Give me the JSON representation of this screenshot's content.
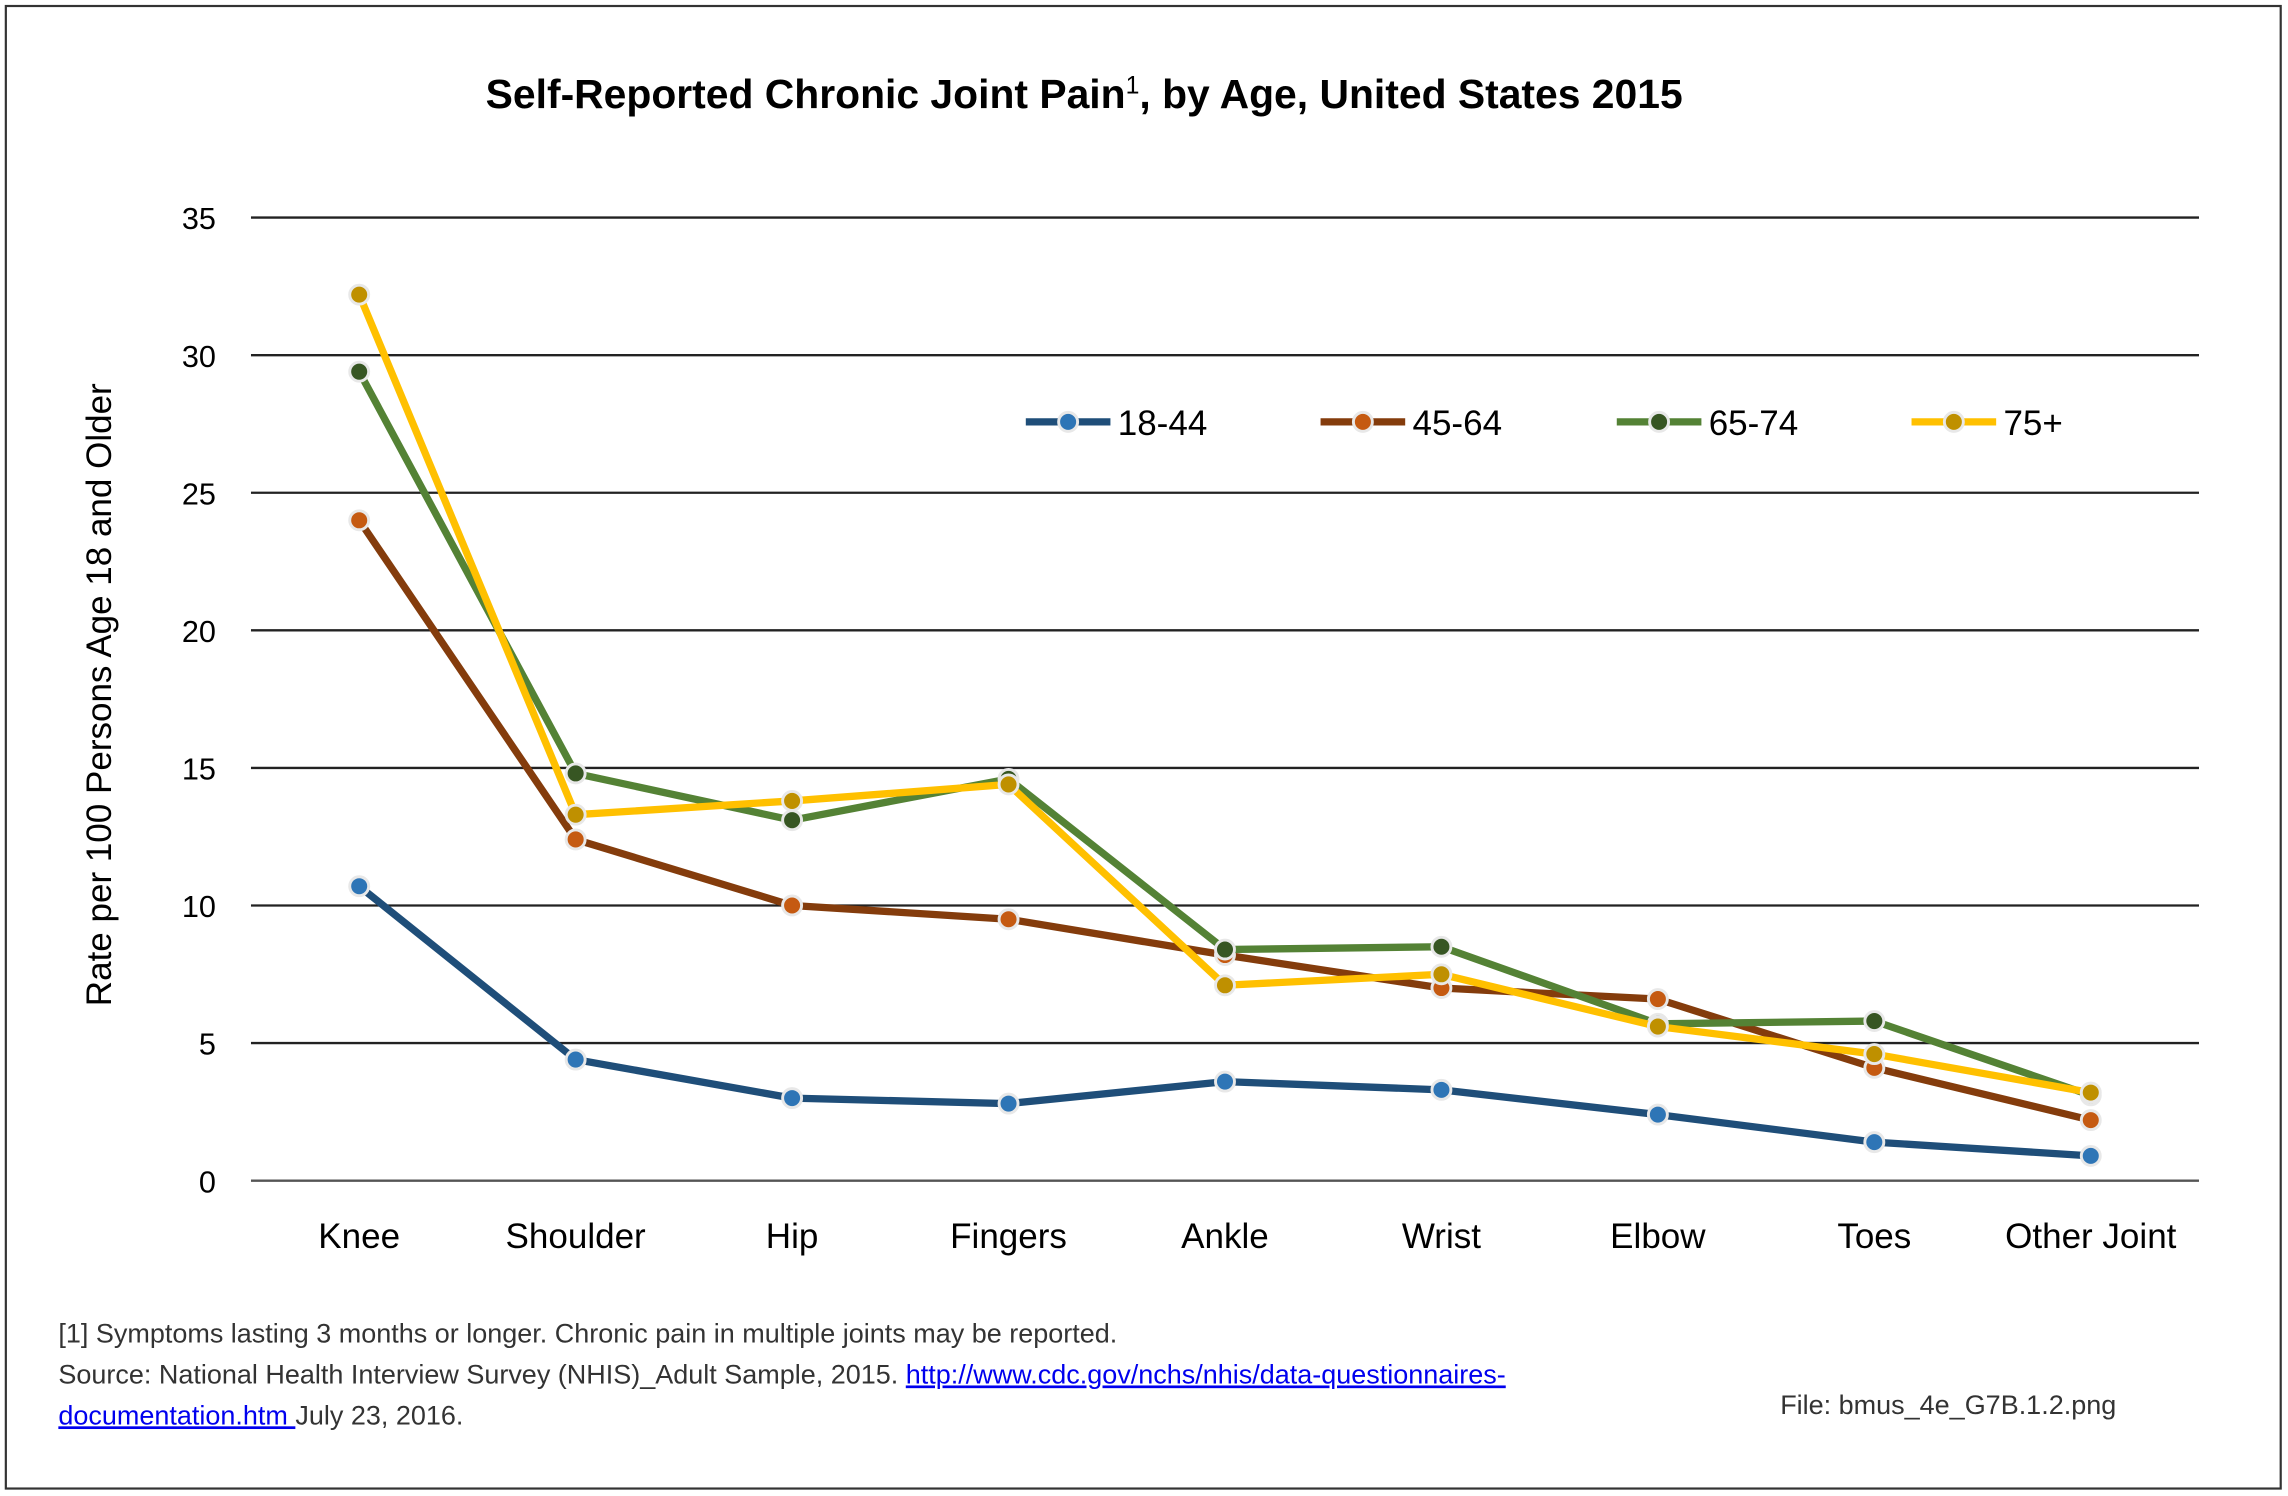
{
  "chart_data": {
    "type": "line",
    "title": "Self-Reported Chronic Joint Pain",
    "title_superscript": "1",
    "title_suffix": ", by Age, United States 2015",
    "xlabel": "",
    "ylabel": "Rate per 100 Persons Age 18 and Older",
    "ylim": [
      0,
      35
    ],
    "yticks": [
      0,
      5,
      10,
      15,
      20,
      25,
      30,
      35
    ],
    "grid": true,
    "legend_position": "top-right",
    "categories": [
      "Knee",
      "Shoulder",
      "Hip",
      "Fingers",
      "Ankle",
      "Wrist",
      "Elbow",
      "Toes",
      "Other Joint"
    ],
    "series": [
      {
        "name": "18-44",
        "line_color": "#1f4e79",
        "marker_color": "#2e75b6",
        "values": [
          10.7,
          4.4,
          3.0,
          2.8,
          3.6,
          3.3,
          2.4,
          1.4,
          0.9
        ]
      },
      {
        "name": "45-64",
        "line_color": "#843c0c",
        "marker_color": "#c55a11",
        "values": [
          24.0,
          12.4,
          10.0,
          9.5,
          8.2,
          7.0,
          6.6,
          4.1,
          2.2
        ]
      },
      {
        "name": "65-74",
        "line_color": "#548235",
        "marker_color": "#375623",
        "values": [
          29.4,
          14.8,
          13.1,
          14.6,
          8.4,
          8.5,
          5.7,
          5.8,
          3.1
        ]
      },
      {
        "name": "75+",
        "line_color": "#ffc000",
        "marker_color": "#bf9000",
        "values": [
          32.2,
          13.3,
          13.8,
          14.4,
          7.1,
          7.5,
          5.6,
          4.6,
          3.2
        ]
      }
    ]
  },
  "footnotes": {
    "line1": "[1] Symptoms lasting 3 months or longer. Chronic pain in multiple joints may be reported.",
    "line2_prefix": "Source: National Health Interview Survey (NHIS)_Adult Sample, 2015.  ",
    "link_part1": "http://www.cdc.gov/nchs/nhis/data-questionnaires-",
    "link_part2": "documentation.htm ",
    "line3_suffix": "July 23, 2016.",
    "file": "File: bmus_4e_G7B.1.2.png"
  }
}
